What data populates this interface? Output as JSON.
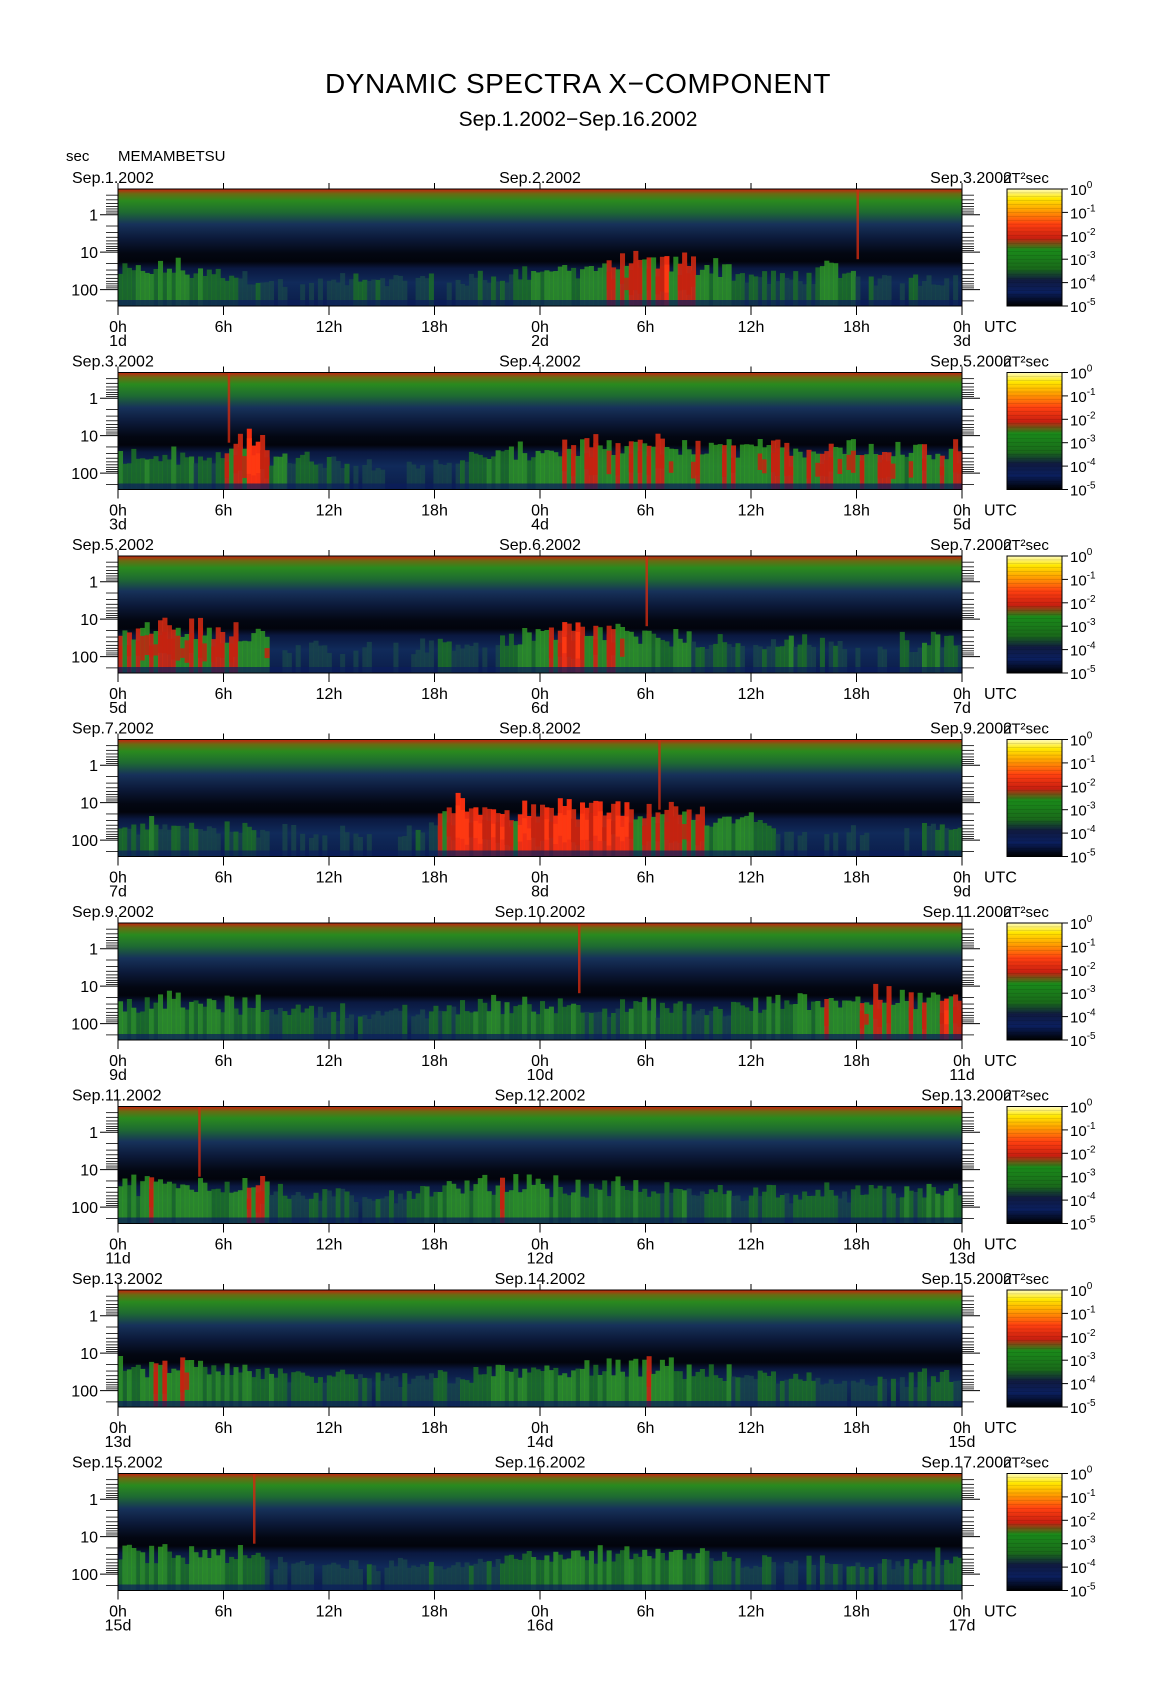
{
  "header": {
    "title": "DYNAMIC SPECTRA X−COMPONENT",
    "subtitle": "Sep.1.2002−Sep.16.2002",
    "unit_label": "sec",
    "station": "MEMAMBETSU"
  },
  "chart_data": {
    "type": "heatmap",
    "title": "DYNAMIC SPECTRA X−COMPONENT",
    "subtitle": "Sep.1.2002−Sep.16.2002",
    "ylabel": "sec",
    "y_scale": "log",
    "y_ticks": [
      "1",
      "10",
      "100"
    ],
    "x_ticks": [
      "0h",
      "6h",
      "12h",
      "18h",
      "0h",
      "6h",
      "12h",
      "18h",
      "0h"
    ],
    "x_unit_label": "UTC",
    "colorbar": {
      "unit": "nT²sec",
      "scale": "log",
      "ticks": [
        {
          "base": "10",
          "exp": "0"
        },
        {
          "base": "10",
          "exp": "-1"
        },
        {
          "base": "10",
          "exp": "-2"
        },
        {
          "base": "10",
          "exp": "-3"
        },
        {
          "base": "10",
          "exp": "-4"
        },
        {
          "base": "10",
          "exp": "-5"
        }
      ],
      "colors": [
        "#000000",
        "#0b1f5e",
        "#1a7a1a",
        "#1a8a1a",
        "#c81e10",
        "#ff4010",
        "#ffa000",
        "#ffe800",
        "#fffbc0"
      ]
    },
    "panels": [
      {
        "start_label": "Sep.1.2002",
        "mid_label": "Sep.2.2002",
        "end_label": "Sep.3.2002",
        "day_labels": [
          "1d",
          "2d",
          "3d"
        ],
        "activity": [
          0.5,
          0.55,
          0.6,
          0.5,
          0.45,
          0.4,
          0.35,
          0.2,
          0.2,
          0.2,
          0.25,
          0.35,
          0.3,
          0.25,
          0.3,
          0.2,
          0.3,
          0.35,
          0.45,
          0.5,
          0.55,
          0.6,
          0.6,
          0.65,
          0.75,
          0.8,
          0.78,
          0.7,
          0.65,
          0.4,
          0.35,
          0.3,
          0.4,
          0.55,
          0.45,
          0.3,
          0.25,
          0.3,
          0.35,
          0.3
        ],
        "spikes": [
          0.875
        ]
      },
      {
        "start_label": "Sep.3.2002",
        "mid_label": "Sep.4.2002",
        "end_label": "Sep.5.2002",
        "day_labels": [
          "3d",
          "4d",
          "5d"
        ],
        "activity": [
          0.5,
          0.55,
          0.5,
          0.45,
          0.4,
          0.75,
          0.95,
          0.5,
          0.4,
          0.35,
          0.3,
          0.3,
          0.25,
          0.2,
          0.2,
          0.3,
          0.4,
          0.5,
          0.55,
          0.6,
          0.65,
          0.7,
          0.7,
          0.65,
          0.7,
          0.75,
          0.7,
          0.65,
          0.7,
          0.75,
          0.7,
          0.65,
          0.7,
          0.75,
          0.7,
          0.75,
          0.7,
          0.65,
          0.7,
          0.7
        ],
        "spikes": [
          0.13
        ]
      },
      {
        "start_label": "Sep.5.2002",
        "mid_label": "Sep.6.2002",
        "end_label": "Sep.7.2002",
        "day_labels": [
          "5d",
          "6d",
          "7d"
        ],
        "activity": [
          0.7,
          0.75,
          0.8,
          0.75,
          0.7,
          0.7,
          0.7,
          0.2,
          0.2,
          0.2,
          0.2,
          0.2,
          0.15,
          0.2,
          0.25,
          0.45,
          0.3,
          0.2,
          0.55,
          0.6,
          0.7,
          0.8,
          0.75,
          0.7,
          0.65,
          0.6,
          0.55,
          0.4,
          0.35,
          0.3,
          0.3,
          0.45,
          0.4,
          0.3,
          0.25,
          0.2,
          0.2,
          0.4,
          0.5,
          0.45
        ],
        "spikes": [
          0.625
        ]
      },
      {
        "start_label": "Sep.7.2002",
        "mid_label": "Sep.8.2002",
        "end_label": "Sep.9.2002",
        "day_labels": [
          "7d",
          "8d",
          "9d"
        ],
        "activity": [
          0.4,
          0.45,
          0.4,
          0.35,
          0.3,
          0.3,
          0.35,
          0.3,
          0.25,
          0.2,
          0.2,
          0.25,
          0.2,
          0.2,
          0.3,
          0.7,
          0.95,
          0.9,
          0.8,
          0.85,
          0.9,
          0.9,
          0.85,
          0.85,
          0.8,
          0.75,
          0.75,
          0.7,
          0.65,
          0.6,
          0.55,
          0.2,
          0.2,
          0.2,
          0.2,
          0.2,
          0.15,
          0.2,
          0.45,
          0.4
        ],
        "spikes": [
          0.64
        ]
      },
      {
        "start_label": "Sep.9.2002",
        "mid_label": "Sep.10.2002",
        "end_label": "Sep.11.2002",
        "day_labels": [
          "9d",
          "10d",
          "11d"
        ],
        "activity": [
          0.55,
          0.6,
          0.6,
          0.55,
          0.55,
          0.5,
          0.5,
          0.45,
          0.4,
          0.4,
          0.35,
          0.3,
          0.25,
          0.3,
          0.35,
          0.4,
          0.5,
          0.55,
          0.5,
          0.5,
          0.55,
          0.5,
          0.45,
          0.4,
          0.5,
          0.45,
          0.4,
          0.35,
          0.4,
          0.45,
          0.5,
          0.55,
          0.6,
          0.7,
          0.65,
          0.75,
          0.7,
          0.7,
          0.75,
          0.8
        ],
        "spikes": [
          0.545
        ]
      },
      {
        "start_label": "Sep.11.2002",
        "mid_label": "Sep.12.2002",
        "end_label": "Sep.13.2002",
        "day_labels": [
          "11d",
          "12d",
          "13d"
        ],
        "activity": [
          0.6,
          0.65,
          0.6,
          0.65,
          0.6,
          0.65,
          0.75,
          0.4,
          0.35,
          0.3,
          0.35,
          0.3,
          0.35,
          0.4,
          0.45,
          0.5,
          0.55,
          0.6,
          0.65,
          0.7,
          0.6,
          0.5,
          0.5,
          0.55,
          0.5,
          0.45,
          0.45,
          0.4,
          0.45,
          0.4,
          0.45,
          0.4,
          0.45,
          0.4,
          0.4,
          0.45,
          0.4,
          0.45,
          0.5,
          0.6
        ],
        "spikes": [
          0.095
        ]
      },
      {
        "start_label": "Sep.13.2002",
        "mid_label": "Sep.14.2002",
        "end_label": "Sep.15.2002",
        "day_labels": [
          "13d",
          "14d",
          "15d"
        ],
        "activity": [
          0.6,
          0.65,
          0.7,
          0.65,
          0.6,
          0.55,
          0.5,
          0.45,
          0.4,
          0.4,
          0.35,
          0.35,
          0.3,
          0.35,
          0.4,
          0.4,
          0.45,
          0.5,
          0.55,
          0.55,
          0.55,
          0.6,
          0.55,
          0.6,
          0.6,
          0.65,
          0.6,
          0.55,
          0.45,
          0.4,
          0.4,
          0.35,
          0.35,
          0.3,
          0.3,
          0.3,
          0.3,
          0.3,
          0.35,
          0.35
        ],
        "spikes": []
      },
      {
        "start_label": "Sep.15.2002",
        "mid_label": "Sep.16.2002",
        "end_label": "Sep.17.2002",
        "day_labels": [
          "15d",
          "16d",
          "17d"
        ],
        "activity": [
          0.55,
          0.6,
          0.55,
          0.5,
          0.55,
          0.5,
          0.45,
          0.3,
          0.25,
          0.25,
          0.3,
          0.3,
          0.3,
          0.35,
          0.35,
          0.3,
          0.35,
          0.4,
          0.4,
          0.45,
          0.5,
          0.55,
          0.55,
          0.6,
          0.6,
          0.6,
          0.55,
          0.5,
          0.4,
          0.35,
          0.35,
          0.3,
          0.3,
          0.3,
          0.3,
          0.3,
          0.35,
          0.4,
          0.45,
          0.45
        ],
        "spikes": [
          0.16
        ]
      }
    ]
  }
}
